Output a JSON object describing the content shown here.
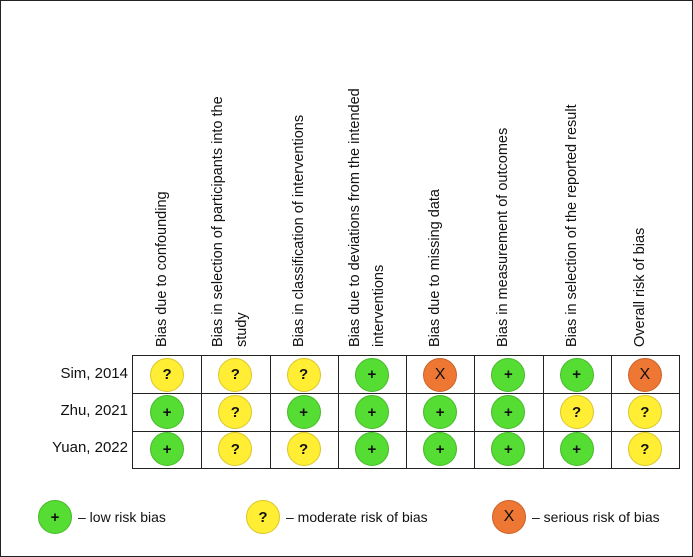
{
  "domains": [
    "Bias due to confounding",
    "Bias in selection of participants into the\nstudy",
    "Bias in classification of interventions",
    "Bias due to deviations from the intended\ninterventions",
    "Bias due to missing  data",
    "Bias in measurement of outcomes",
    "Bias in selection of the reported result",
    "Overall risk of bias"
  ],
  "studies": [
    {
      "name": "Sim, 2014",
      "ratings": [
        "moderate",
        "moderate",
        "moderate",
        "low",
        "serious",
        "low",
        "low",
        "serious"
      ]
    },
    {
      "name": "Zhu, 2021",
      "ratings": [
        "low",
        "moderate",
        "low",
        "low",
        "low",
        "low",
        "moderate",
        "moderate"
      ]
    },
    {
      "name": "Yuan, 2022",
      "ratings": [
        "low",
        "moderate",
        "moderate",
        "low",
        "low",
        "low",
        "low",
        "moderate"
      ]
    }
  ],
  "symbols": {
    "low": "+",
    "moderate": "?",
    "serious": "X"
  },
  "legend": [
    {
      "level": "low",
      "symbol": "+",
      "text": "– low risk bias"
    },
    {
      "level": "moderate",
      "symbol": "?",
      "text": "– moderate risk of bias"
    },
    {
      "level": "serious",
      "symbol": "X",
      "text": "– serious risk of bias"
    }
  ],
  "colors": {
    "low": "#55dd33",
    "moderate": "#ffee33",
    "serious": "#ee7733"
  }
}
